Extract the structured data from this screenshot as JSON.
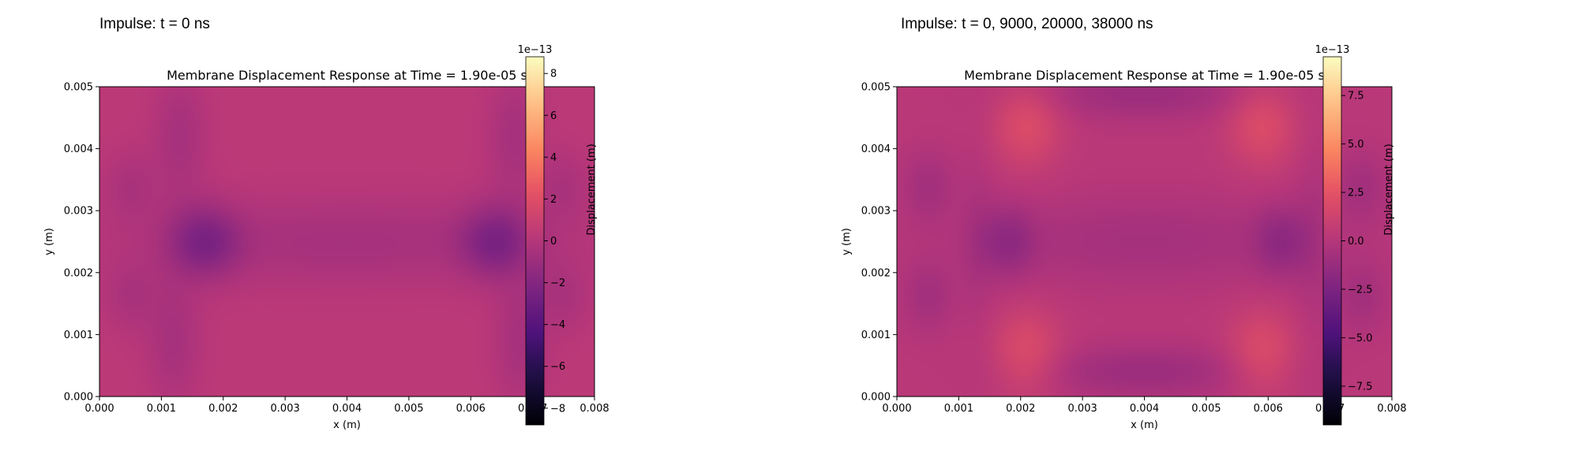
{
  "panels": [
    {
      "heading": "Impulse: t = 0 ns",
      "chart": {
        "type": "heatmap",
        "title": "Membrane Displacement Response at Time = 1.90e-05 s",
        "xlabel": "x (m)",
        "ylabel": "y (m)",
        "xlim": [
          0,
          0.008
        ],
        "ylim": [
          0,
          0.005
        ],
        "x_ticks": [
          "0.000",
          "0.001",
          "0.002",
          "0.003",
          "0.004",
          "0.005",
          "0.006",
          "0.007",
          "0.008"
        ],
        "y_ticks": [
          "0.000",
          "0.001",
          "0.002",
          "0.003",
          "0.004",
          "0.005"
        ],
        "colormap": "magma",
        "colorbar": {
          "label": "Displacement (m)",
          "offset_text": "1e−13",
          "range": [
            -8.8,
            8.8
          ],
          "ticks": [
            8,
            6,
            4,
            2,
            0,
            -2,
            -4,
            -6,
            -8
          ],
          "tick_labels": [
            "8",
            "6",
            "4",
            "2",
            "0",
            "−2",
            "−4",
            "−6",
            "−8"
          ]
        },
        "base_value": 0.3,
        "features": [
          {
            "type": "blob",
            "x": 0.0013,
            "y": 0.0042,
            "sx": 0.0003,
            "sy": 0.0007,
            "amp": -0.9
          },
          {
            "type": "blob",
            "x": 0.0012,
            "y": 0.0009,
            "sx": 0.0003,
            "sy": 0.0007,
            "amp": -0.9
          },
          {
            "type": "blob",
            "x": 0.0017,
            "y": 0.0025,
            "sx": 0.0004,
            "sy": 0.0004,
            "amp": -2.2
          },
          {
            "type": "blob",
            "x": 0.0064,
            "y": 0.0025,
            "sx": 0.0004,
            "sy": 0.0004,
            "amp": -2.2
          },
          {
            "type": "blob",
            "x": 0.0067,
            "y": 0.0042,
            "sx": 0.0003,
            "sy": 0.0007,
            "amp": -0.9
          },
          {
            "type": "blob",
            "x": 0.0068,
            "y": 0.0009,
            "sx": 0.0003,
            "sy": 0.0007,
            "amp": -0.9
          },
          {
            "type": "blob",
            "x": 0.0005,
            "y": 0.0034,
            "sx": 0.0003,
            "sy": 0.0004,
            "amp": -0.7
          },
          {
            "type": "blob",
            "x": 0.0005,
            "y": 0.0016,
            "sx": 0.0003,
            "sy": 0.0004,
            "amp": -0.7
          },
          {
            "type": "blob",
            "x": 0.0075,
            "y": 0.0034,
            "sx": 0.0003,
            "sy": 0.0004,
            "amp": -0.7
          },
          {
            "type": "blob",
            "x": 0.0075,
            "y": 0.0016,
            "sx": 0.0003,
            "sy": 0.0004,
            "amp": -0.7
          },
          {
            "type": "blob",
            "x": 0.004,
            "y": 0.0025,
            "sx": 0.0024,
            "sy": 0.0005,
            "amp": -0.9
          }
        ]
      }
    },
    {
      "heading": "Impulse: t = 0, 9000, 20000, 38000 ns",
      "chart": {
        "type": "heatmap",
        "title": "Membrane Displacement Response at Time = 1.90e-05 s",
        "xlabel": "x (m)",
        "ylabel": "y (m)",
        "xlim": [
          0,
          0.008
        ],
        "ylim": [
          0,
          0.005
        ],
        "x_ticks": [
          "0.000",
          "0.001",
          "0.002",
          "0.003",
          "0.004",
          "0.005",
          "0.006",
          "0.007",
          "0.008"
        ],
        "y_ticks": [
          "0.000",
          "0.001",
          "0.002",
          "0.003",
          "0.004",
          "0.005"
        ],
        "colormap": "magma",
        "colorbar": {
          "label": "Displacement (m)",
          "offset_text": "1e−13",
          "range": [
            -9.5,
            9.5
          ],
          "ticks": [
            7.5,
            5.0,
            2.5,
            0.0,
            -2.5,
            -5.0,
            -7.5
          ],
          "tick_labels": [
            "7.5",
            "5.0",
            "2.5",
            "0.0",
            "−2.5",
            "−5.0",
            "−7.5"
          ]
        },
        "base_value": 0.2,
        "features": [
          {
            "type": "blob",
            "x": 0.0021,
            "y": 0.0044,
            "sx": 0.0004,
            "sy": 0.0005,
            "amp": 1.8
          },
          {
            "type": "blob",
            "x": 0.0059,
            "y": 0.0044,
            "sx": 0.0004,
            "sy": 0.0005,
            "amp": 1.8
          },
          {
            "type": "blob",
            "x": 0.0021,
            "y": 0.0007,
            "sx": 0.0004,
            "sy": 0.0005,
            "amp": 1.8
          },
          {
            "type": "blob",
            "x": 0.0059,
            "y": 0.0007,
            "sx": 0.0004,
            "sy": 0.0005,
            "amp": 1.8
          },
          {
            "type": "blob",
            "x": 0.004,
            "y": 0.0049,
            "sx": 0.0013,
            "sy": 0.0003,
            "amp": -1.3
          },
          {
            "type": "blob",
            "x": 0.004,
            "y": 0.0004,
            "sx": 0.0013,
            "sy": 0.0003,
            "amp": -1.3
          },
          {
            "type": "blob",
            "x": 0.0018,
            "y": 0.0025,
            "sx": 0.0003,
            "sy": 0.0004,
            "amp": -1.5
          },
          {
            "type": "blob",
            "x": 0.0062,
            "y": 0.0025,
            "sx": 0.0003,
            "sy": 0.0004,
            "amp": -1.5
          },
          {
            "type": "blob",
            "x": 0.004,
            "y": 0.0025,
            "sx": 0.002,
            "sy": 0.0005,
            "amp": -0.9
          },
          {
            "type": "blob",
            "x": 0.0005,
            "y": 0.0034,
            "sx": 0.0003,
            "sy": 0.0004,
            "amp": -1.0
          },
          {
            "type": "blob",
            "x": 0.0005,
            "y": 0.0016,
            "sx": 0.0003,
            "sy": 0.0004,
            "amp": -1.0
          },
          {
            "type": "blob",
            "x": 0.0075,
            "y": 0.0034,
            "sx": 0.0003,
            "sy": 0.0004,
            "amp": -1.0
          },
          {
            "type": "blob",
            "x": 0.0075,
            "y": 0.0016,
            "sx": 0.0003,
            "sy": 0.0004,
            "amp": -1.0
          },
          {
            "type": "blob",
            "x": 0.0013,
            "y": 0.0025,
            "sx": 0.0002,
            "sy": 0.0012,
            "amp": -0.5
          },
          {
            "type": "blob",
            "x": 0.0067,
            "y": 0.0025,
            "sx": 0.0002,
            "sy": 0.0012,
            "amp": -0.5
          }
        ]
      }
    }
  ]
}
